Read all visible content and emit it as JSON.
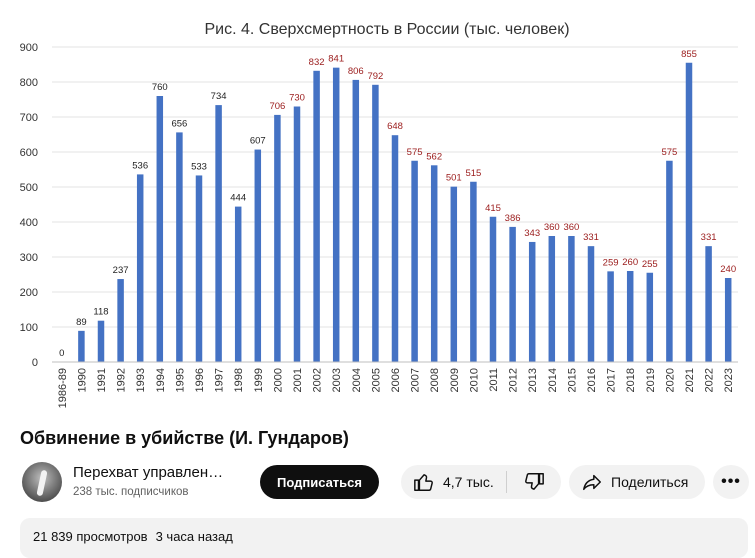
{
  "chart_data": {
    "type": "bar",
    "title": "Рис. 4. Сверхсмертность в России (тыс. человек)",
    "categories": [
      "1986-89",
      "1990",
      "1991",
      "1992",
      "1993",
      "1994",
      "1995",
      "1996",
      "1997",
      "1998",
      "1999",
      "2000",
      "2001",
      "2002",
      "2003",
      "2004",
      "2005",
      "2006",
      "2007",
      "2008",
      "2009",
      "2010",
      "2011",
      "2012",
      "2013",
      "2014",
      "2015",
      "2016",
      "2017",
      "2018",
      "2019",
      "2020",
      "2021",
      "2022",
      "2023"
    ],
    "values": [
      0,
      89,
      118,
      237,
      536,
      760,
      656,
      533,
      734,
      444,
      607,
      706,
      730,
      832,
      841,
      806,
      792,
      648,
      575,
      562,
      501,
      515,
      415,
      386,
      343,
      360,
      360,
      331,
      259,
      260,
      255,
      575,
      855,
      331,
      240
    ],
    "label_colors": [
      "#1f1f1f",
      "#1f1f1f",
      "#1f1f1f",
      "#1f1f1f",
      "#1f1f1f",
      "#1f1f1f",
      "#1f1f1f",
      "#1f1f1f",
      "#1f1f1f",
      "#1f1f1f",
      "#1f1f1f",
      "#9b1c1c",
      "#9b1c1c",
      "#9b1c1c",
      "#9b1c1c",
      "#9b1c1c",
      "#9b1c1c",
      "#9b1c1c",
      "#9b1c1c",
      "#9b1c1c",
      "#9b1c1c",
      "#9b1c1c",
      "#9b1c1c",
      "#9b1c1c",
      "#9b1c1c",
      "#9b1c1c",
      "#9b1c1c",
      "#9b1c1c",
      "#9b1c1c",
      "#9b1c1c",
      "#9b1c1c",
      "#9b1c1c",
      "#9b1c1c",
      "#9b1c1c",
      "#9b1c1c"
    ],
    "bar_color": "#4472c4",
    "ylim": [
      0,
      900
    ],
    "yticks": [
      0,
      100,
      200,
      300,
      400,
      500,
      600,
      700,
      800,
      900
    ],
    "ytick_labels": [
      "0",
      "100",
      "200",
      "300",
      "400",
      "500",
      "600",
      "700",
      "800",
      "900"
    ],
    "grid": true
  },
  "video": {
    "title": "Обвинение в убийстве (И. Гундаров)"
  },
  "channel": {
    "name": "Перехват управлен…",
    "subscribers": "238 тыс. подписчиков",
    "avatar_icon": "channel-avatar-icon"
  },
  "actions": {
    "subscribe_label": "Подписаться",
    "like_count": "4,7 тыс.",
    "share_label": "Поделиться",
    "more_label": "•••",
    "like_icon": "thumbs-up-icon",
    "dislike_icon": "thumbs-down-icon",
    "share_icon": "share-arrow-icon"
  },
  "description": {
    "views": "21 839 просмотров",
    "time_ago": "3 часа назад"
  }
}
